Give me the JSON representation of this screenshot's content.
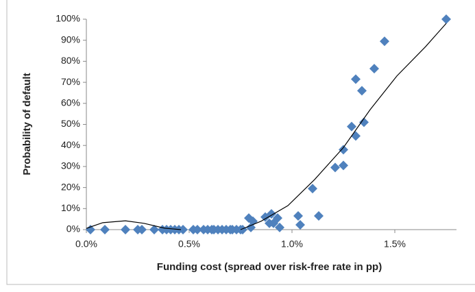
{
  "chart_data": {
    "type": "scatter",
    "x_label": "Funding cost (spread over risk-free rate in pp)",
    "y_label": "Probability of default",
    "xlim": [
      0,
      1.8
    ],
    "ylim": [
      0,
      100
    ],
    "xticks": [
      {
        "value": 0,
        "label": "0.0%"
      },
      {
        "value": 0.5,
        "label": "0.5%"
      },
      {
        "value": 1,
        "label": "1.0%"
      },
      {
        "value": 1.5,
        "label": "1.5%"
      }
    ],
    "yticks": [
      {
        "value": 0,
        "label": "0%"
      },
      {
        "value": 10,
        "label": "10%"
      },
      {
        "value": 20,
        "label": "20%"
      },
      {
        "value": 30,
        "label": "30%"
      },
      {
        "value": 40,
        "label": "40%"
      },
      {
        "value": 50,
        "label": "50%"
      },
      {
        "value": 60,
        "label": "60%"
      },
      {
        "value": 70,
        "label": "70%"
      },
      {
        "value": 80,
        "label": "80%"
      },
      {
        "value": 90,
        "label": "90%"
      },
      {
        "value": 100,
        "label": "100%"
      }
    ],
    "series": [
      {
        "color": "#4f81bd",
        "marker": "diamond",
        "x": [
          0.02,
          0.09,
          0.19,
          0.25,
          0.27,
          0.33,
          0.37,
          0.39,
          0.41,
          0.43,
          0.45,
          0.47,
          0.52,
          0.54,
          0.57,
          0.59,
          0.61,
          0.62,
          0.64,
          0.66,
          0.68,
          0.7,
          0.71,
          0.73,
          0.75,
          0.76,
          0.79,
          0.8,
          0.81,
          0.87,
          0.89,
          0.9,
          0.91,
          0.93,
          0.94,
          1.03,
          1.04,
          1.1,
          1.13,
          1.21,
          1.25,
          1.25,
          1.29,
          1.31,
          1.31,
          1.34,
          1.35,
          1.4,
          1.45,
          1.75
        ],
        "values": [
          0,
          0,
          0,
          0,
          0,
          0,
          0,
          0,
          0,
          0,
          0,
          0,
          0,
          0,
          0,
          0,
          0,
          0,
          0,
          0,
          0,
          0,
          0,
          0,
          0,
          0,
          5.5,
          1,
          4,
          6,
          3,
          7.5,
          3,
          5.5,
          1,
          6.5,
          2.3,
          19.5,
          6.5,
          29.5,
          30.5,
          38,
          49,
          44.5,
          71.5,
          66,
          51,
          76.5,
          89.5,
          100
        ]
      },
      {
        "color": "#000000",
        "marker": "line",
        "x": [
          0,
          0.08,
          0.19,
          0.28,
          0.38,
          0.46,
          0.6,
          0.75,
          0.85,
          0.98,
          1.11,
          1.25,
          1.38,
          1.51,
          1.65,
          1.75
        ],
        "values": [
          0.6,
          3.3,
          4.2,
          3,
          0.7,
          0,
          null,
          0,
          4,
          11.4,
          23.8,
          39,
          57,
          73,
          87,
          98
        ]
      }
    ]
  }
}
